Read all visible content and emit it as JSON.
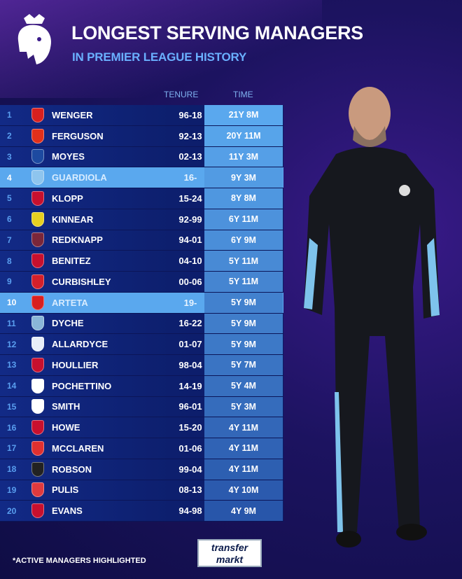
{
  "header": {
    "title": "LONGEST SERVING MANAGERS",
    "subtitle": "IN PREMIER LEAGUE HISTORY",
    "logo": "premier-league-lion-logo"
  },
  "columns": {
    "tenure": "TENURE",
    "time": "TIME"
  },
  "colors": {
    "active_highlight": "#5aa8ee",
    "row_dark": "#0d1f6e",
    "subtitle": "#6ab0ff"
  },
  "rows": [
    {
      "rank": "1",
      "club_icon": "arsenal-crest",
      "color": "#d9201f",
      "name": "WENGER",
      "tenure": "96-18",
      "time": "21Y 8M",
      "active": false
    },
    {
      "rank": "2",
      "club_icon": "man-utd-crest",
      "color": "#e2301a",
      "name": "FERGUSON",
      "tenure": "92-13",
      "time": "20Y 11M",
      "active": false
    },
    {
      "rank": "3",
      "club_icon": "everton-crest",
      "color": "#1d4aa0",
      "name": "MOYES",
      "tenure": "02-13",
      "time": "11Y 3M",
      "active": false
    },
    {
      "rank": "4",
      "club_icon": "man-city-crest",
      "color": "#8ec5ee",
      "name": "GUARDIOLA",
      "tenure": "16-",
      "time": "9Y 3M",
      "active": true
    },
    {
      "rank": "5",
      "club_icon": "liverpool-crest",
      "color": "#c8102e",
      "name": "KLOPP",
      "tenure": "15-24",
      "time": "8Y 8M",
      "active": false
    },
    {
      "rank": "6",
      "club_icon": "wimbledon-crest",
      "color": "#e8d020",
      "name": "KINNEAR",
      "tenure": "92-99",
      "time": "6Y 11M",
      "active": false
    },
    {
      "rank": "7",
      "club_icon": "west-ham-crest",
      "color": "#7a263a",
      "name": "REDKNAPP",
      "tenure": "94-01",
      "time": "6Y 9M",
      "active": false
    },
    {
      "rank": "8",
      "club_icon": "liverpool-crest",
      "color": "#c8102e",
      "name": "BENITEZ",
      "tenure": "04-10",
      "time": "5Y 11M",
      "active": false
    },
    {
      "rank": "9",
      "club_icon": "charlton-crest",
      "color": "#d4202a",
      "name": "CURBISHLEY",
      "tenure": "00-06",
      "time": "5Y 11M",
      "active": false
    },
    {
      "rank": "10",
      "club_icon": "arsenal-crest",
      "color": "#d9201f",
      "name": "ARTETA",
      "tenure": "19-",
      "time": "5Y 9M",
      "active": true
    },
    {
      "rank": "11",
      "club_icon": "burnley-crest",
      "color": "#8ab6d8",
      "name": "DYCHE",
      "tenure": "16-22",
      "time": "5Y 9M",
      "active": false
    },
    {
      "rank": "12",
      "club_icon": "bolton-crest",
      "color": "#e8eef8",
      "name": "ALLARDYCE",
      "tenure": "01-07",
      "time": "5Y 9M",
      "active": false
    },
    {
      "rank": "13",
      "club_icon": "liverpool-crest",
      "color": "#c8102e",
      "name": "HOULLIER",
      "tenure": "98-04",
      "time": "5Y 7M",
      "active": false
    },
    {
      "rank": "14",
      "club_icon": "tottenham-crest",
      "color": "#ffffff",
      "name": "POCHETTINO",
      "tenure": "14-19",
      "time": "5Y 4M",
      "active": false
    },
    {
      "rank": "15",
      "club_icon": "derby-crest",
      "color": "#ffffff",
      "name": "SMITH",
      "tenure": "96-01",
      "time": "5Y 3M",
      "active": false
    },
    {
      "rank": "16",
      "club_icon": "bournemouth-crest",
      "color": "#c8102e",
      "name": "HOWE",
      "tenure": "15-20",
      "time": "4Y 11M",
      "active": false
    },
    {
      "rank": "17",
      "club_icon": "middlesbrough-crest",
      "color": "#e03030",
      "name": "MCCLAREN",
      "tenure": "01-06",
      "time": "4Y 11M",
      "active": false
    },
    {
      "rank": "18",
      "club_icon": "newcastle-crest",
      "color": "#222222",
      "name": "ROBSON",
      "tenure": "99-04",
      "time": "4Y 11M",
      "active": false
    },
    {
      "rank": "19",
      "club_icon": "stoke-crest",
      "color": "#e03a3e",
      "name": "PULIS",
      "tenure": "08-13",
      "time": "4Y 10M",
      "active": false
    },
    {
      "rank": "20",
      "club_icon": "liverpool-crest",
      "color": "#c8102e",
      "name": "EVANS",
      "tenure": "94-98",
      "time": "4Y 9M",
      "active": false
    }
  ],
  "footer": {
    "note": "*ACTIVE MANAGERS HIGHLIGHTED",
    "brand_line1": "transfer",
    "brand_line2": "markt"
  }
}
